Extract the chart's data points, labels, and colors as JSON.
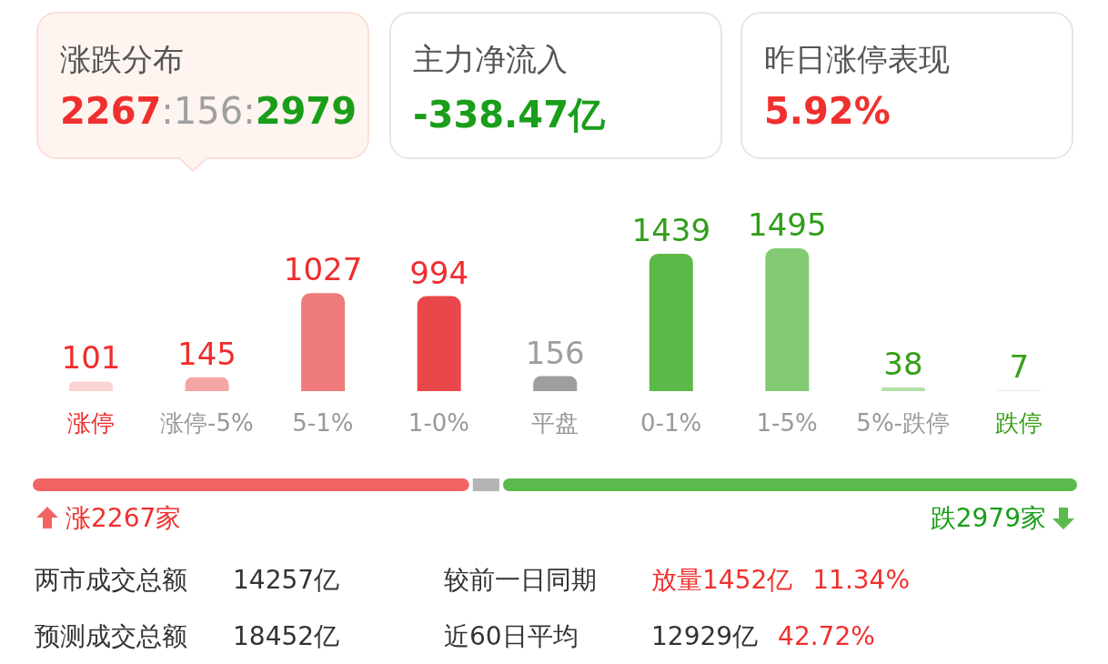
{
  "chart_data": [
    {
      "type": "other",
      "annotations": [
        "涨跌分布",
        "2267:156:2979",
        "主力净流入",
        "-338.47亿",
        "昨日涨停表现",
        "5.92%"
      ]
    },
    {
      "type": "bar",
      "categories": [
        "涨停",
        "涨停-5%",
        "5-1%",
        "1-0%",
        "平盘",
        "0-1%",
        "1-5%",
        "5%-跌停",
        "跌停"
      ],
      "values": [
        101,
        145,
        1027,
        994,
        156,
        1439,
        1495,
        38,
        7
      ],
      "colors": [
        "#fbd3d3",
        "#f4a6a6",
        "#ef7b7b",
        "#e8484a",
        "#9e9e9e",
        "#5bba47",
        "#82cb74",
        "#b4e0a8",
        "#d9f0d2"
      ],
      "data_labels": true
    },
    {
      "type": "other",
      "annotations": [
        "涨2267家",
        "跌2979家",
        "两市成交总额",
        "14257亿",
        "较前一日同期",
        "放量1452亿",
        "11.34%",
        "预测成交总额",
        "18452亿",
        "近60日平均",
        "12929亿",
        "42.72%"
      ]
    }
  ]
}
